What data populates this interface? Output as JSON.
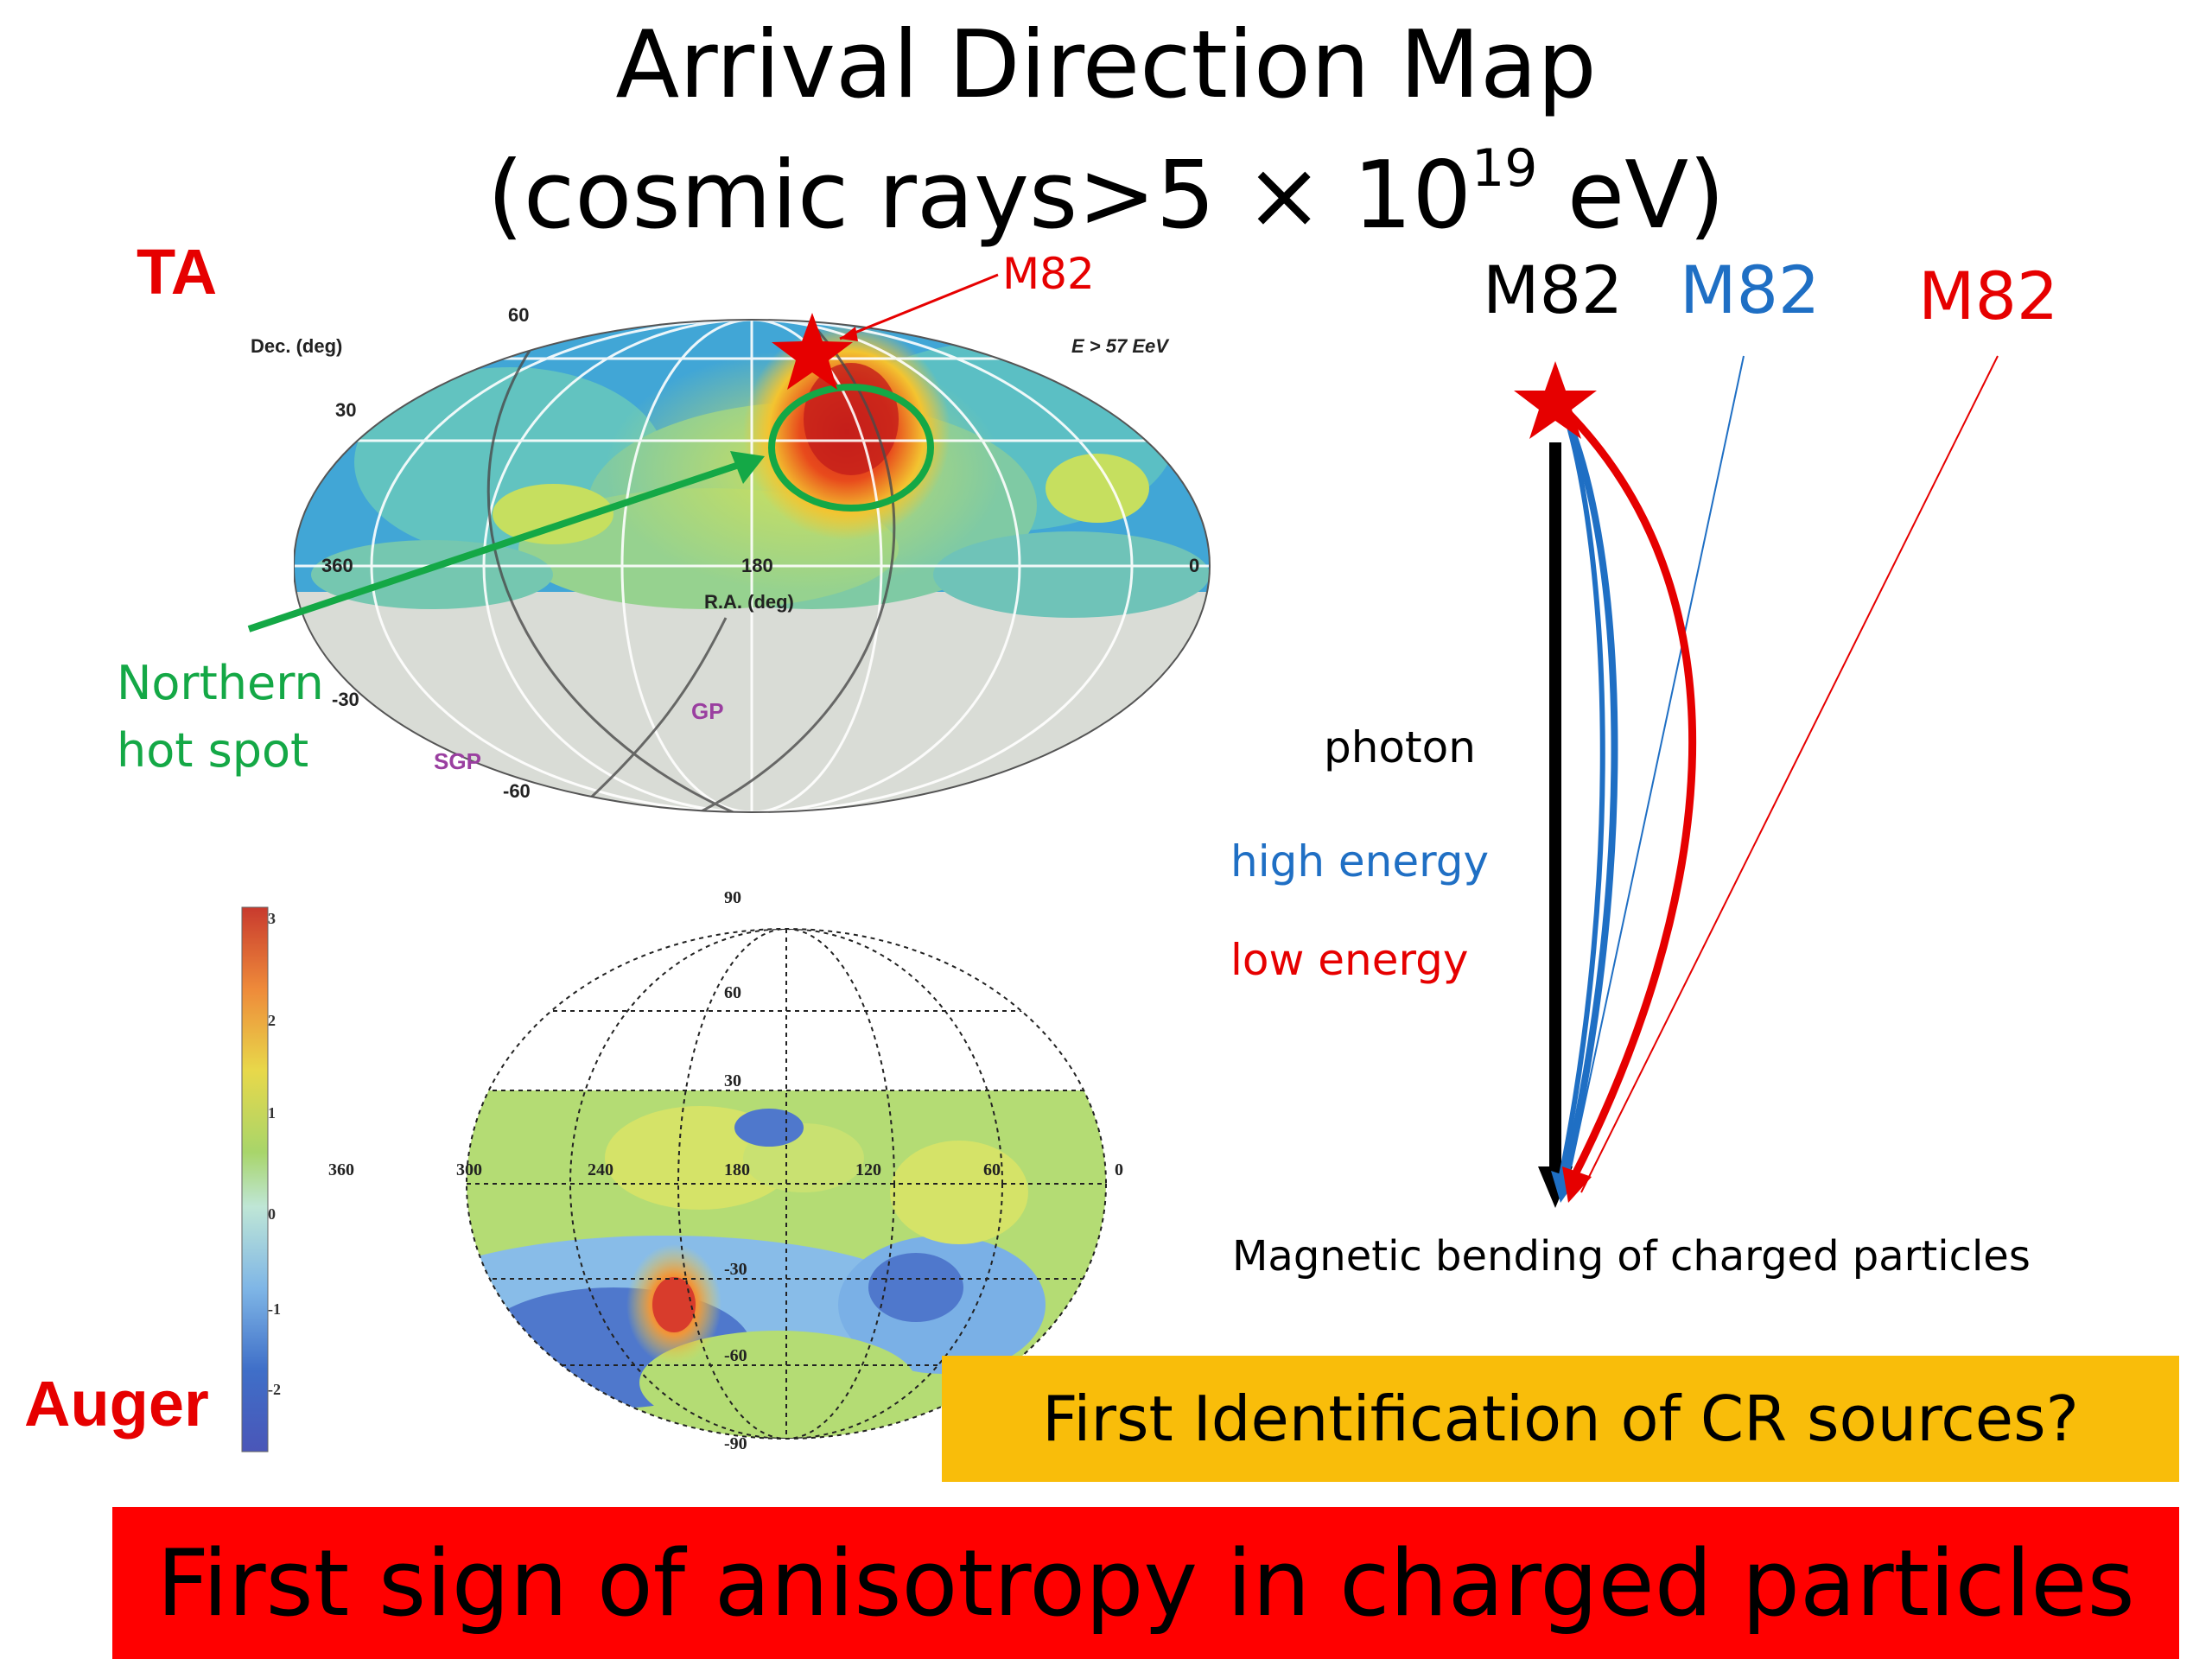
{
  "title": {
    "line1": "Arrival Direction Map",
    "line2_prefix": "(cosmic rays>5 × 10",
    "line2_exp": "19",
    "line2_suffix": " eV)"
  },
  "ta_map": {
    "label": "TA",
    "m82_label": "M82",
    "dec_label": "Dec. (deg)",
    "energy_label": "E > 57 EeV",
    "ra_label": "R.A. (deg)",
    "dec_ticks": [
      "60",
      "30",
      "-30",
      "-60"
    ],
    "ra_ticks": [
      "360",
      "180",
      "0"
    ],
    "gp_label": "GP",
    "sgp_label": "SGP",
    "hotspot_label_line1": "Northern",
    "hotspot_label_line2": "hot spot"
  },
  "auger_map": {
    "label": "Auger",
    "ra_ticks": [
      "360",
      "300",
      "240",
      "180",
      "120",
      "60",
      "0"
    ],
    "dec_ticks": [
      "90",
      "60",
      "30",
      "-30",
      "-60",
      "-90"
    ],
    "colorbar_ticks": [
      "3",
      "2",
      "1",
      "0",
      "-1",
      "-2"
    ]
  },
  "bending_diagram": {
    "source_labels": [
      "M82",
      "M82",
      "M82"
    ],
    "label_colors": [
      "#000000",
      "#1f6fc4",
      "#e60000"
    ],
    "legend": {
      "photon": "photon",
      "high_energy": "high energy",
      "low_energy": "low energy"
    },
    "caption": "Magnetic bending of charged particles"
  },
  "banner_question": "First Identification of CR sources?",
  "banner_main": "First sign of anisotropy in charged particles",
  "colors": {
    "red": "#e60000",
    "blue": "#1f6fc4",
    "green": "#14a846",
    "orange_banner": "#f9bd0a",
    "red_banner": "#ff0000"
  }
}
